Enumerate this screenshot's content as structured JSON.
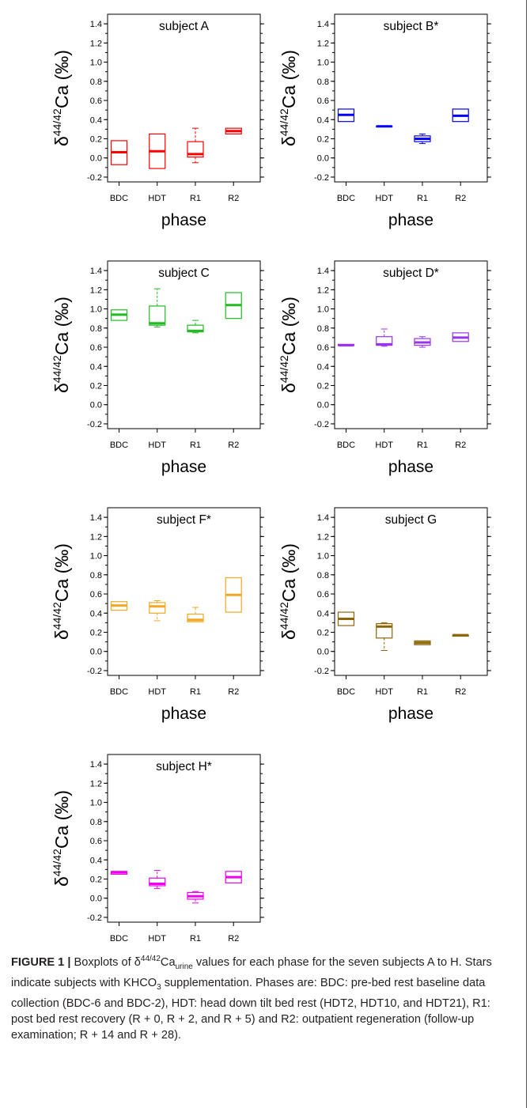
{
  "caption": {
    "label": "FIGURE 1 |",
    "pre": " Boxplots of δ",
    "sup": "44/42",
    "mid": "Ca",
    "sub": "urine",
    "post1": " values for each phase for the seven subjects A to H. Stars indicate subjects with KHCO",
    "sub2": "3",
    "post2": " supplementation. Phases are: BDC: pre-bed rest baseline data collection (BDC-6 and BDC-2), HDT: head down tilt bed rest (HDT2, HDT10, and HDT21), R1: post bed rest recovery (R + 0, R + 2, and R + 5) and R2: outpatient regeneration (follow-up examination; R + 14 and R + 28)."
  },
  "chart_data": [
    {
      "type": "boxplot",
      "title": "subject A",
      "color": "#ff0000",
      "ylabel": {
        "delta": "δ",
        "sup": "44/42",
        "base": "Ca (‰)"
      },
      "xlabel": "phase",
      "categories": [
        "BDC",
        "HDT",
        "R1",
        "R2"
      ],
      "yticks": [
        "-0.2",
        "0.0",
        "0.2",
        "0.4",
        "0.6",
        "0.8",
        "1.0",
        "1.2",
        "1.4"
      ],
      "ylim": [
        -0.25,
        1.5
      ],
      "boxes": [
        {
          "min": -0.07,
          "q1": -0.07,
          "median": 0.06,
          "q3": 0.18,
          "max": 0.18
        },
        {
          "min": -0.11,
          "q1": -0.11,
          "median": 0.07,
          "q3": 0.25,
          "max": 0.25
        },
        {
          "min": -0.05,
          "q1": 0.01,
          "median": 0.04,
          "q3": 0.17,
          "max": 0.31
        },
        {
          "min": 0.25,
          "q1": 0.25,
          "median": 0.28,
          "q3": 0.31,
          "max": 0.31
        }
      ]
    },
    {
      "type": "boxplot",
      "title": "subject B*",
      "color": "#0000ff",
      "ylabel": {
        "delta": "δ",
        "sup": "44/42",
        "base": "Ca (‰)"
      },
      "xlabel": "phase",
      "categories": [
        "BDC",
        "HDT",
        "R1",
        "R2"
      ],
      "yticks": [
        "-0.2",
        "0.0",
        "0.2",
        "0.4",
        "0.6",
        "0.8",
        "1.0",
        "1.2",
        "1.4"
      ],
      "ylim": [
        -0.25,
        1.5
      ],
      "boxes": [
        {
          "min": 0.38,
          "q1": 0.38,
          "median": 0.45,
          "q3": 0.51,
          "max": 0.51
        },
        {
          "min": 0.33,
          "q1": 0.33,
          "median": 0.33,
          "q3": 0.33,
          "max": 0.33
        },
        {
          "min": 0.15,
          "q1": 0.17,
          "median": 0.2,
          "q3": 0.23,
          "max": 0.25
        },
        {
          "min": 0.38,
          "q1": 0.38,
          "median": 0.44,
          "q3": 0.51,
          "max": 0.51
        }
      ]
    },
    {
      "type": "boxplot",
      "title": "subject C",
      "color": "#22bb22",
      "ylabel": {
        "delta": "δ",
        "sup": "44/42",
        "base": "Ca (‰)"
      },
      "xlabel": "phase",
      "categories": [
        "BDC",
        "HDT",
        "R1",
        "R2"
      ],
      "yticks": [
        "-0.2",
        "0.0",
        "0.2",
        "0.4",
        "0.6",
        "0.8",
        "1.0",
        "1.2",
        "1.4"
      ],
      "ylim": [
        -0.25,
        1.5
      ],
      "boxes": [
        {
          "min": 0.88,
          "q1": 0.88,
          "median": 0.94,
          "q3": 0.99,
          "max": 0.99
        },
        {
          "min": 0.81,
          "q1": 0.83,
          "median": 0.85,
          "q3": 1.03,
          "max": 1.21
        },
        {
          "min": 0.75,
          "q1": 0.76,
          "median": 0.77,
          "q3": 0.83,
          "max": 0.88
        },
        {
          "min": 0.9,
          "q1": 0.9,
          "median": 1.04,
          "q3": 1.17,
          "max": 1.17
        }
      ]
    },
    {
      "type": "boxplot",
      "title": "subject D*",
      "color": "#9933ee",
      "ylabel": {
        "delta": "δ",
        "sup": "44/42",
        "base": "Ca (‰)"
      },
      "xlabel": "phase",
      "categories": [
        "BDC",
        "HDT",
        "R1",
        "R2"
      ],
      "yticks": [
        "-0.2",
        "0.0",
        "0.2",
        "0.4",
        "0.6",
        "0.8",
        "1.0",
        "1.2",
        "1.4"
      ],
      "ylim": [
        -0.25,
        1.5
      ],
      "boxes": [
        {
          "min": 0.62,
          "q1": 0.62,
          "median": 0.62,
          "q3": 0.63,
          "max": 0.63
        },
        {
          "min": 0.61,
          "q1": 0.62,
          "median": 0.63,
          "q3": 0.71,
          "max": 0.79
        },
        {
          "min": 0.6,
          "q1": 0.62,
          "median": 0.65,
          "q3": 0.69,
          "max": 0.71
        },
        {
          "min": 0.66,
          "q1": 0.66,
          "median": 0.7,
          "q3": 0.75,
          "max": 0.75
        }
      ]
    },
    {
      "type": "boxplot",
      "title": "subject F*",
      "color": "#f5a623",
      "ylabel": {
        "delta": "δ",
        "sup": "44/42",
        "base": "Ca (‰)"
      },
      "xlabel": "phase",
      "categories": [
        "BDC",
        "HDT",
        "R1",
        "R2"
      ],
      "yticks": [
        "-0.2",
        "0.0",
        "0.2",
        "0.4",
        "0.6",
        "0.8",
        "1.0",
        "1.2",
        "1.4"
      ],
      "ylim": [
        -0.25,
        1.5
      ],
      "boxes": [
        {
          "min": 0.43,
          "q1": 0.43,
          "median": 0.48,
          "q3": 0.52,
          "max": 0.52
        },
        {
          "min": 0.32,
          "q1": 0.4,
          "median": 0.47,
          "q3": 0.51,
          "max": 0.53
        },
        {
          "min": 0.31,
          "q1": 0.31,
          "median": 0.33,
          "q3": 0.39,
          "max": 0.46
        },
        {
          "min": 0.41,
          "q1": 0.41,
          "median": 0.59,
          "q3": 0.77,
          "max": 0.77
        }
      ]
    },
    {
      "type": "boxplot",
      "title": "subject G",
      "color": "#8b6508",
      "ylabel": {
        "delta": "δ",
        "sup": "44/42",
        "base": "Ca (‰)"
      },
      "xlabel": "phase",
      "categories": [
        "BDC",
        "HDT",
        "R1",
        "R2"
      ],
      "yticks": [
        "-0.2",
        "0.0",
        "0.2",
        "0.4",
        "0.6",
        "0.8",
        "1.0",
        "1.2",
        "1.4"
      ],
      "ylim": [
        -0.25,
        1.5
      ],
      "boxes": [
        {
          "min": 0.27,
          "q1": 0.27,
          "median": 0.34,
          "q3": 0.41,
          "max": 0.41
        },
        {
          "min": 0.01,
          "q1": 0.14,
          "median": 0.26,
          "q3": 0.29,
          "max": 0.3
        },
        {
          "min": 0.07,
          "q1": 0.07,
          "median": 0.09,
          "q3": 0.11,
          "max": 0.11
        },
        {
          "min": 0.16,
          "q1": 0.16,
          "median": 0.17,
          "q3": 0.17,
          "max": 0.17
        }
      ]
    },
    {
      "type": "boxplot",
      "title": "subject H*",
      "color": "#ee00ee",
      "ylabel": {
        "delta": "δ",
        "sup": "44/42",
        "base": "Ca (‰)"
      },
      "xlabel": "phase",
      "categories": [
        "BDC",
        "HDT",
        "R1",
        "R2"
      ],
      "yticks": [
        "-0.2",
        "0.0",
        "0.2",
        "0.4",
        "0.6",
        "0.8",
        "1.0",
        "1.2",
        "1.4"
      ],
      "ylim": [
        -0.25,
        1.5
      ],
      "boxes": [
        {
          "min": 0.25,
          "q1": 0.25,
          "median": 0.27,
          "q3": 0.28,
          "max": 0.28
        },
        {
          "min": 0.1,
          "q1": 0.13,
          "median": 0.15,
          "q3": 0.21,
          "max": 0.29
        },
        {
          "min": -0.05,
          "q1": -0.01,
          "median": 0.02,
          "q3": 0.06,
          "max": 0.07
        },
        {
          "min": 0.16,
          "q1": 0.16,
          "median": 0.22,
          "q3": 0.28,
          "max": 0.28
        }
      ]
    }
  ]
}
